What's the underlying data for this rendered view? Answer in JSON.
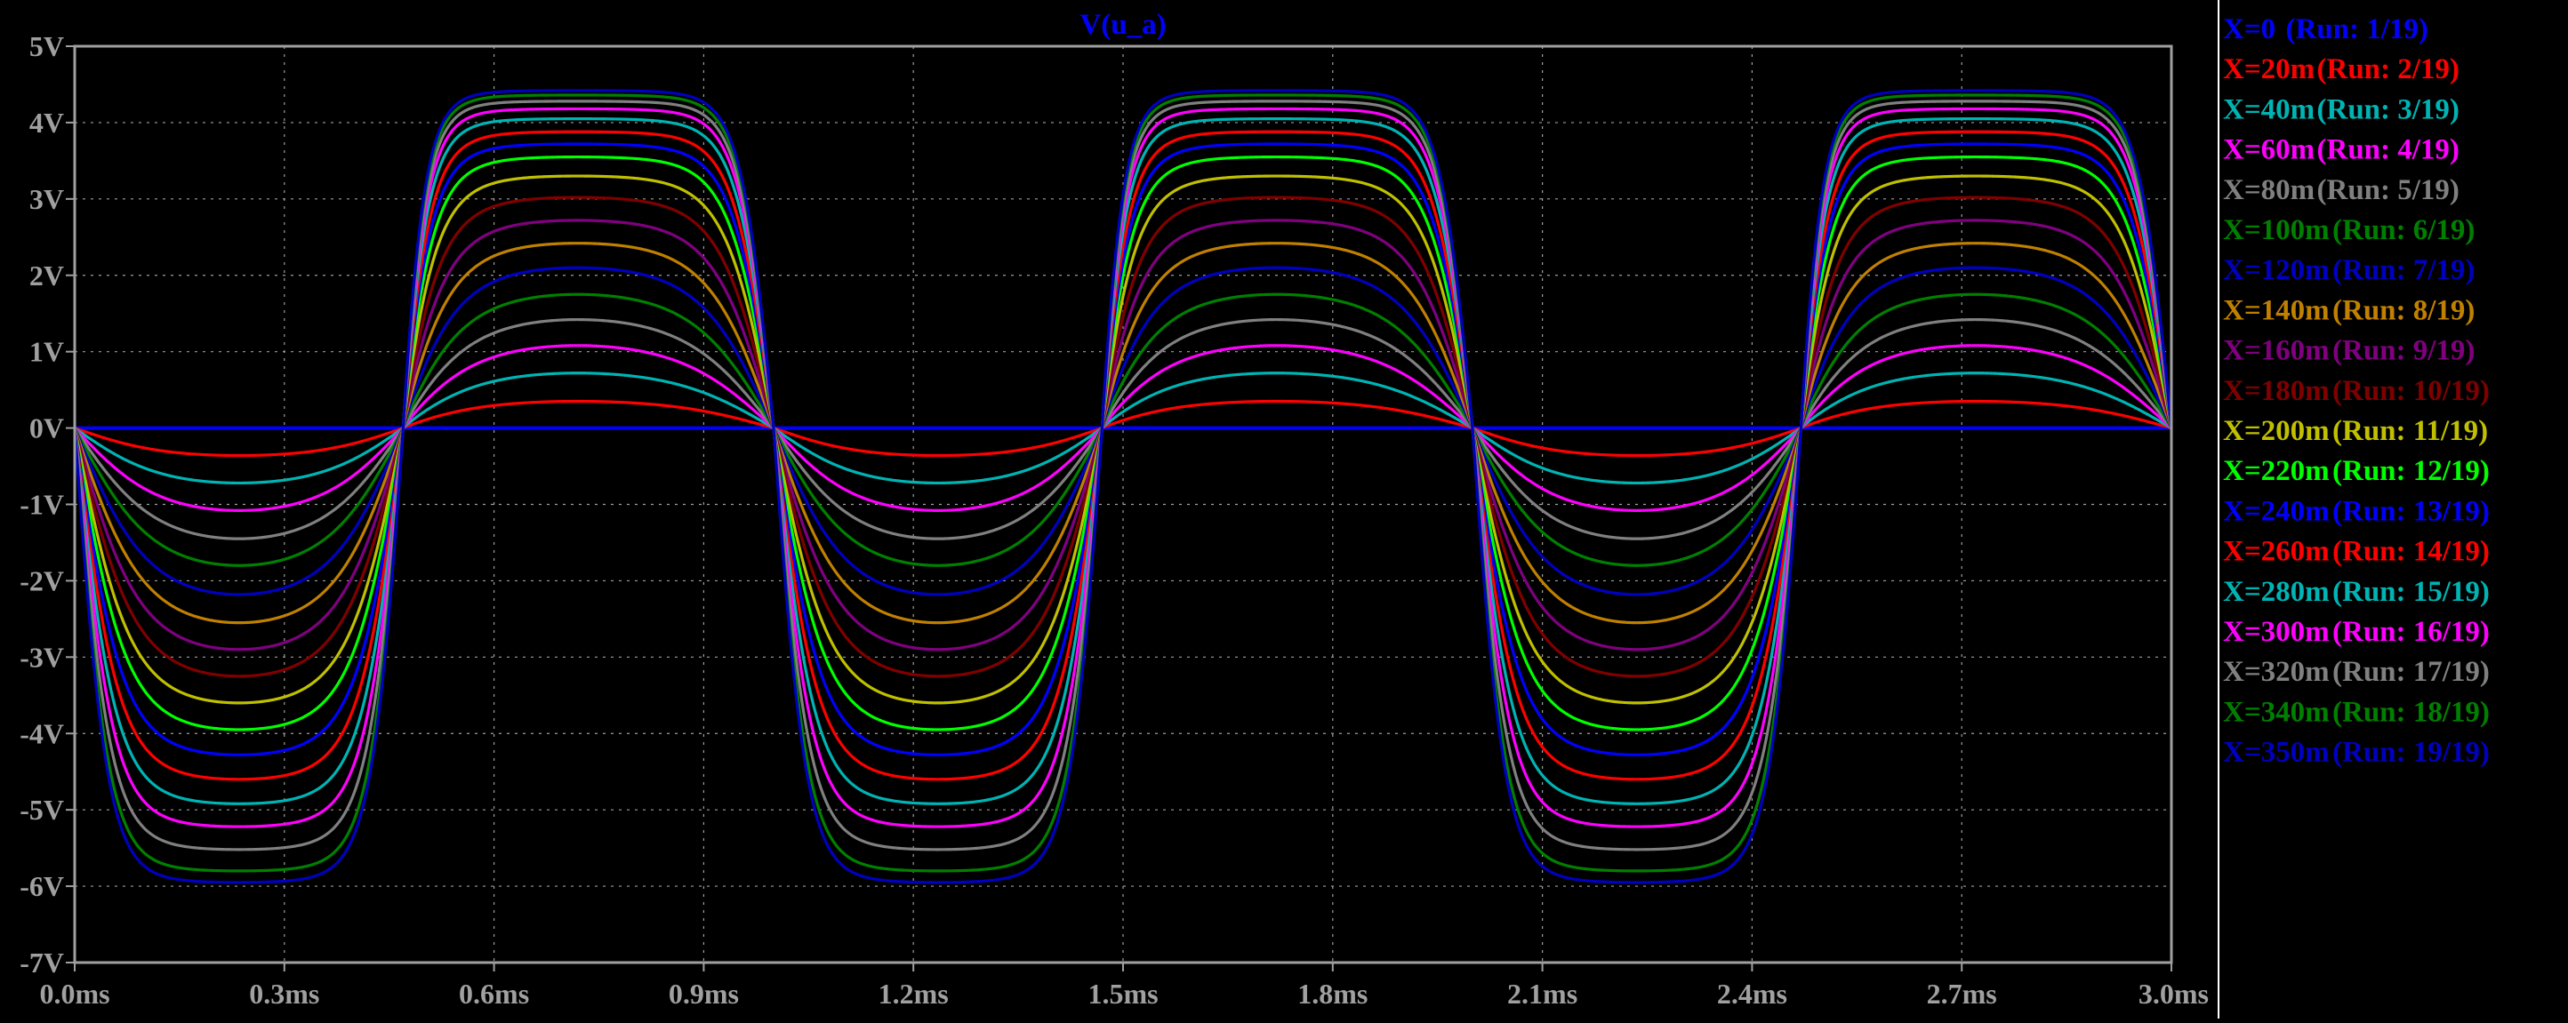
{
  "window": {
    "background": "#000000",
    "axis_color": "#a0a0a0",
    "grid_color": "#a0a0a0"
  },
  "chart_data": {
    "type": "line",
    "title": "V(u_a)",
    "title_color": "#0000ff",
    "xlabel": "",
    "ylabel": "",
    "xlim": [
      0.0,
      3.0
    ],
    "ylim": [
      -7,
      5
    ],
    "x_unit": "ms",
    "x_ticks": [
      0.0,
      0.3,
      0.6,
      0.9,
      1.2,
      1.5,
      1.8,
      2.1,
      2.4,
      2.7,
      3.0
    ],
    "x_tick_labels": [
      "0.0ms",
      "0.3ms",
      "0.6ms",
      "0.9ms",
      "1.2ms",
      "1.5ms",
      "1.8ms",
      "2.1ms",
      "2.4ms",
      "2.7ms",
      "3.0ms"
    ],
    "y_ticks": [
      5,
      4,
      3,
      2,
      1,
      0,
      -1,
      -2,
      -3,
      -4,
      -5,
      -6,
      -7
    ],
    "y_tick_labels": [
      "5V",
      "4V",
      "3V",
      "2V",
      "1V",
      "0V",
      "-1V",
      "-2V",
      "-3V",
      "-4V",
      "-5V",
      "-6V",
      "-7V"
    ],
    "grid": true,
    "legend_position": "right",
    "waveform": {
      "shape": "sine-soft-clipped",
      "period_ms": 1.0,
      "zero_crossings_ms": [
        0.0,
        0.47,
        1.0,
        1.47,
        2.0,
        2.47,
        3.0
      ],
      "negative_peak_ms": [
        0.24,
        1.24,
        2.24
      ],
      "positive_peak_ms": [
        0.74,
        1.74,
        2.74
      ]
    },
    "series": [
      {
        "name": "X=0",
        "run": "(Run: 1/19)",
        "color": "#0000ff",
        "pos_peak": 0.0,
        "neg_peak": 0.0
      },
      {
        "name": "X=20m",
        "run": "(Run: 2/19)",
        "color": "#ff0000",
        "pos_peak": 0.35,
        "neg_peak": -0.36
      },
      {
        "name": "X=40m",
        "run": "(Run: 3/19)",
        "color": "#00b4b4",
        "pos_peak": 0.72,
        "neg_peak": -0.72
      },
      {
        "name": "X=60m",
        "run": "(Run: 4/19)",
        "color": "#ff00ff",
        "pos_peak": 1.08,
        "neg_peak": -1.08
      },
      {
        "name": "X=80m",
        "run": "(Run: 5/19)",
        "color": "#808080",
        "pos_peak": 1.42,
        "neg_peak": -1.45
      },
      {
        "name": "X=100m",
        "run": "(Run: 6/19)",
        "color": "#008000",
        "pos_peak": 1.75,
        "neg_peak": -1.8
      },
      {
        "name": "X=120m",
        "run": "(Run: 7/19)",
        "color": "#0000c0",
        "pos_peak": 2.1,
        "neg_peak": -2.18
      },
      {
        "name": "X=140m",
        "run": "(Run: 8/19)",
        "color": "#c08000",
        "pos_peak": 2.42,
        "neg_peak": -2.55
      },
      {
        "name": "X=160m",
        "run": "(Run: 9/19)",
        "color": "#800080",
        "pos_peak": 2.72,
        "neg_peak": -2.9
      },
      {
        "name": "X=180m",
        "run": "(Run: 10/19)",
        "color": "#800000",
        "pos_peak": 3.02,
        "neg_peak": -3.25
      },
      {
        "name": "X=200m",
        "run": "(Run: 11/19)",
        "color": "#c0c000",
        "pos_peak": 3.3,
        "neg_peak": -3.6
      },
      {
        "name": "X=220m",
        "run": "(Run: 12/19)",
        "color": "#00ff00",
        "pos_peak": 3.55,
        "neg_peak": -3.95
      },
      {
        "name": "X=240m",
        "run": "(Run: 13/19)",
        "color": "#0000ff",
        "pos_peak": 3.72,
        "neg_peak": -4.28
      },
      {
        "name": "X=260m",
        "run": "(Run: 14/19)",
        "color": "#ff0000",
        "pos_peak": 3.88,
        "neg_peak": -4.6
      },
      {
        "name": "X=280m",
        "run": "(Run: 15/19)",
        "color": "#00b4b4",
        "pos_peak": 4.05,
        "neg_peak": -4.92
      },
      {
        "name": "X=300m",
        "run": "(Run: 16/19)",
        "color": "#ff00ff",
        "pos_peak": 4.18,
        "neg_peak": -5.22
      },
      {
        "name": "X=320m",
        "run": "(Run: 17/19)",
        "color": "#808080",
        "pos_peak": 4.28,
        "neg_peak": -5.52
      },
      {
        "name": "X=340m",
        "run": "(Run: 18/19)",
        "color": "#008000",
        "pos_peak": 4.36,
        "neg_peak": -5.8
      },
      {
        "name": "X=350m",
        "run": "(Run: 19/19)",
        "color": "#0000c0",
        "pos_peak": 4.42,
        "neg_peak": -5.95
      }
    ]
  }
}
